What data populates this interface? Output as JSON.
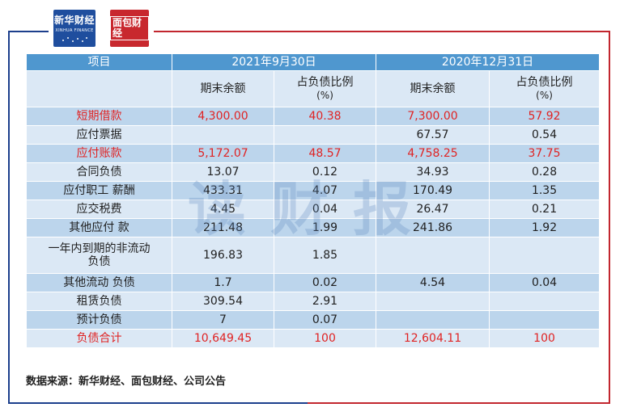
{
  "logos": {
    "xinhua_text": "新华财经",
    "xinhua_sub": "XINHUA FINANCE",
    "mianbao_text": "面包财经"
  },
  "table": {
    "header": {
      "item": "项目",
      "period1": "2021年9月30日",
      "period2": "2020年12月31日"
    },
    "subheader": {
      "balance1": "期末余额",
      "ratio1_line1": "占负债比例",
      "ratio1_line2": "(%)",
      "balance2": "期末余额",
      "ratio2_line1": "占负债比例",
      "ratio2_line2": "(%)"
    },
    "rows": [
      {
        "item": "短期借款",
        "b1": "4,300.00",
        "r1": "40.38",
        "b2": "7,300.00",
        "r2": "57.92",
        "highlight": true
      },
      {
        "item": "应付票据",
        "b1": "",
        "r1": "",
        "b2": "67.57",
        "r2": "0.54",
        "highlight": false
      },
      {
        "item": "应付账款",
        "b1": "5,172.07",
        "r1": "48.57",
        "b2": "4,758.25",
        "r2": "37.75",
        "highlight": true
      },
      {
        "item": "合同负债",
        "b1": "13.07",
        "r1": "0.12",
        "b2": "34.93",
        "r2": "0.28",
        "highlight": false
      },
      {
        "item": "应付职工 薪酬",
        "b1": "433.31",
        "r1": "4.07",
        "b2": "170.49",
        "r2": "1.35",
        "highlight": false
      },
      {
        "item": "应交税费",
        "b1": "4.45",
        "r1": "0.04",
        "b2": "26.47",
        "r2": "0.21",
        "highlight": false
      },
      {
        "item": "其他应付 款",
        "b1": "211.48",
        "r1": "1.99",
        "b2": "241.86",
        "r2": "1.92",
        "highlight": false
      },
      {
        "item_line1": "一年内到期的非流动",
        "item_line2": "负债",
        "b1": "196.83",
        "r1": "1.85",
        "b2": "",
        "r2": "",
        "highlight": false
      },
      {
        "item": "其他流动 负债",
        "b1": "1.7",
        "r1": "0.02",
        "b2": "4.54",
        "r2": "0.04",
        "highlight": false
      },
      {
        "item": "租赁负债",
        "b1": "309.54",
        "r1": "2.91",
        "b2": "",
        "r2": "",
        "highlight": false
      },
      {
        "item": "预计负债",
        "b1": "7",
        "r1": "0.07",
        "b2": "",
        "r2": "",
        "highlight": false
      },
      {
        "item": "负债合计",
        "b1": "10,649.45",
        "r1": "100",
        "b2": "12,604.11",
        "r2": "100",
        "highlight": true
      }
    ]
  },
  "watermark": "读财报",
  "source": "数据来源：新华财经、面包财经、公司公告",
  "colors": {
    "header_blue": "#4f97cf",
    "row_light": "#dbe8f5",
    "row_dark": "#bcd5ec",
    "highlight_red": "#e02323",
    "frame_blue": "#1c3f8c",
    "frame_red": "#c2262e"
  }
}
